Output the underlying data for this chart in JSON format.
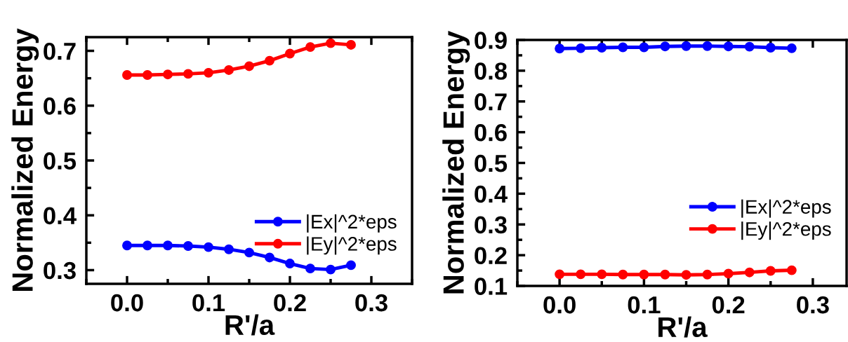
{
  "chart_data": [
    {
      "type": "line",
      "xlabel": "R'/a",
      "ylabel": "Normalized Energy",
      "x": [
        0,
        0.025,
        0.05,
        0.075,
        0.1,
        0.125,
        0.15,
        0.175,
        0.2,
        0.225,
        0.25,
        0.275
      ],
      "series": [
        {
          "name": "|Ex|^2*eps",
          "color": "#0000ff",
          "values": [
            0.345,
            0.345,
            0.345,
            0.344,
            0.342,
            0.338,
            0.332,
            0.323,
            0.312,
            0.303,
            0.301,
            0.309
          ]
        },
        {
          "name": "|Ey|^2*eps",
          "color": "#ff0000",
          "values": [
            0.656,
            0.656,
            0.657,
            0.658,
            0.66,
            0.665,
            0.672,
            0.682,
            0.695,
            0.707,
            0.714,
            0.711
          ]
        }
      ],
      "xlim": [
        -0.05,
        0.35
      ],
      "xticks": [
        {
          "value": 0,
          "label": "0.0"
        },
        0.1,
        0.2,
        0.3
      ],
      "ylim": [
        0.275,
        0.725
      ],
      "yticks": [
        0.3,
        0.4,
        0.5,
        0.6,
        0.7
      ],
      "legend": "center right",
      "marker": "circle",
      "line_style": "solid",
      "grid": false
    },
    {
      "type": "line",
      "xlabel": "R'/a",
      "ylabel": "Normalized Energy",
      "x": [
        0,
        0.025,
        0.05,
        0.075,
        0.1,
        0.125,
        0.15,
        0.175,
        0.2,
        0.225,
        0.25,
        0.275
      ],
      "series": [
        {
          "name": "|Ex|^2*eps",
          "color": "#0000ff",
          "values": [
            0.872,
            0.873,
            0.875,
            0.876,
            0.876,
            0.879,
            0.88,
            0.88,
            0.879,
            0.878,
            0.875,
            0.873
          ]
        },
        {
          "name": "|Ey|^2*eps",
          "color": "#ff0000",
          "values": [
            0.138,
            0.138,
            0.138,
            0.137,
            0.137,
            0.137,
            0.136,
            0.137,
            0.14,
            0.144,
            0.149,
            0.151
          ]
        }
      ],
      "xlim": [
        -0.05,
        0.34
      ],
      "xticks": [
        {
          "value": 0,
          "label": "0.0"
        },
        0.1,
        0.2,
        0.3
      ],
      "ylim": [
        0.1,
        0.9
      ],
      "yticks": [
        0.1,
        0.2,
        0.3,
        0.4,
        0.5,
        0.6,
        0.7,
        0.8,
        0.9
      ],
      "legend": "lower right",
      "marker": "circle",
      "line_style": "solid",
      "grid": false
    }
  ]
}
